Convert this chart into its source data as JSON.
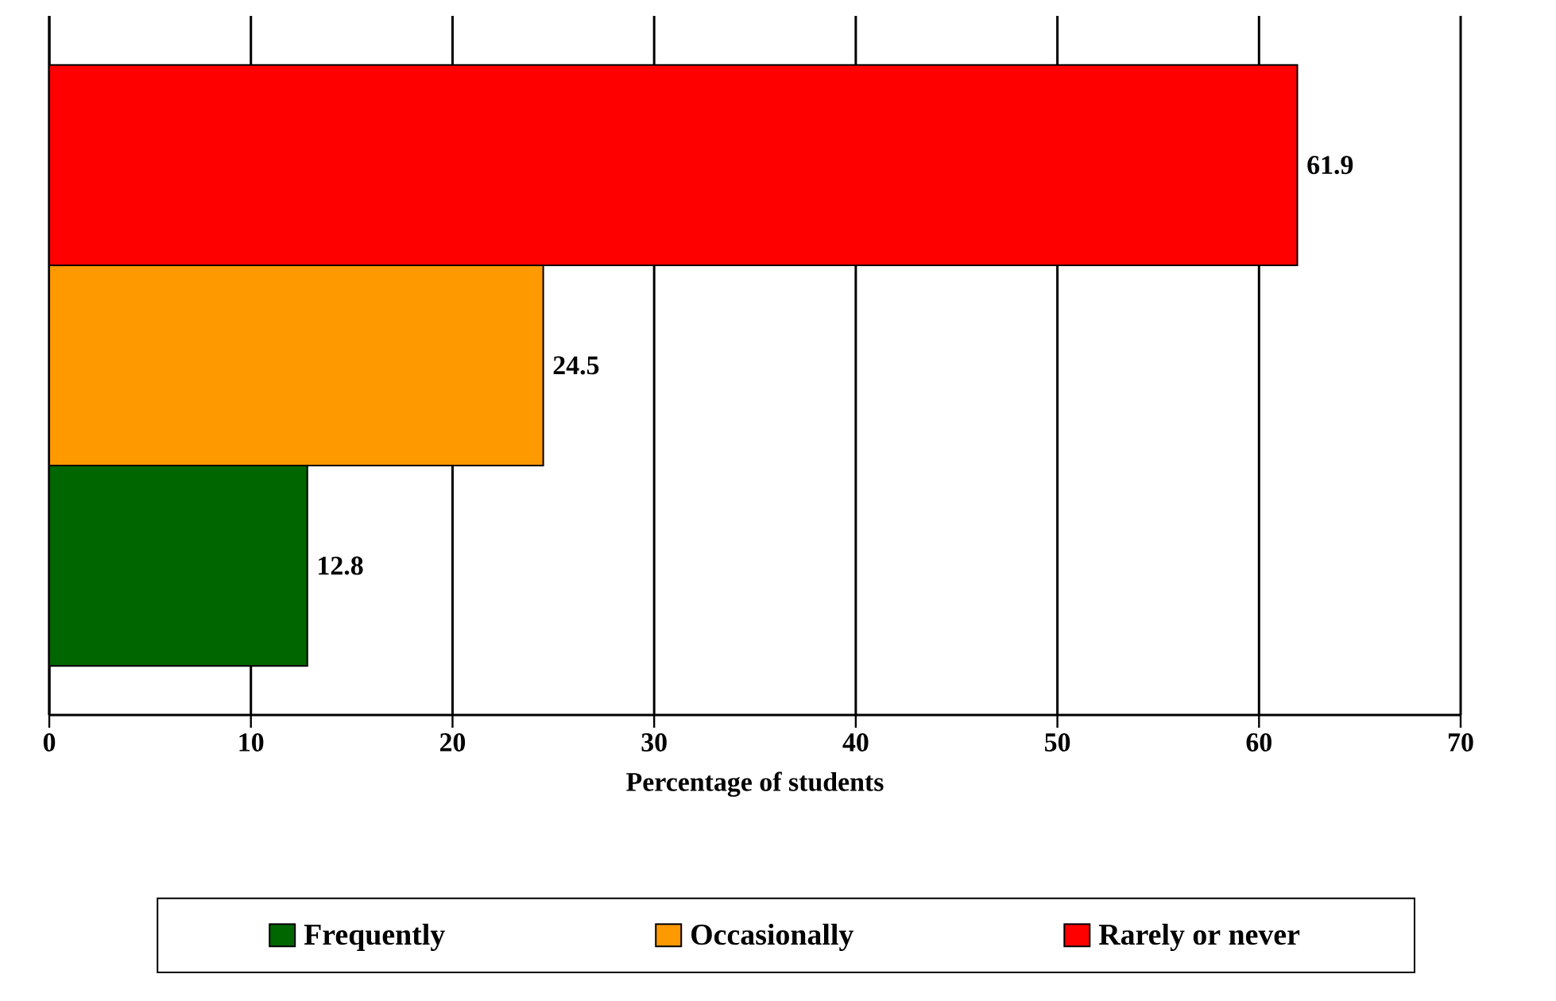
{
  "chart_data": {
    "type": "bar",
    "orientation": "horizontal",
    "categories": [
      null
    ],
    "series": [
      {
        "name": "Frequently",
        "color": "#006600",
        "values": [
          12.8
        ]
      },
      {
        "name": "Occasionally",
        "color": "#ff9900",
        "values": [
          24.5
        ]
      },
      {
        "name": "Rarely or never",
        "color": "#ff0000",
        "values": [
          61.9
        ]
      }
    ],
    "xlabel": "Percentage of students",
    "xlim": [
      0,
      70
    ],
    "xticks": [
      0,
      10,
      20,
      30,
      40,
      50,
      60,
      70
    ],
    "grid": "x",
    "legend": "bottom",
    "data_labels": true
  }
}
